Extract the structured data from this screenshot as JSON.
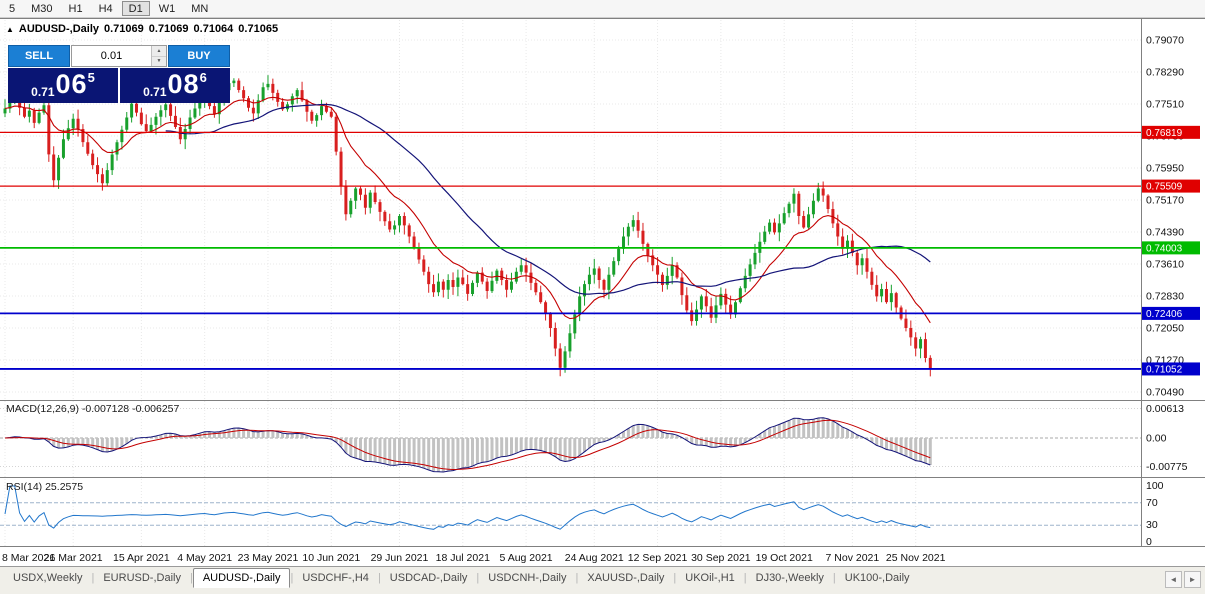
{
  "colors": {
    "up": "#18a02c",
    "down": "#d81f1f",
    "ma_fast": "#c40000",
    "ma_slow": "#141478",
    "macd_hist": "#c2c2c2",
    "macd_line": "#141478",
    "macd_signal": "#c40000",
    "rsi_line": "#2277cc",
    "grid": "#e8e8e8",
    "divider": "#808080",
    "panel_blue": "#0a1574",
    "button_blue": "#1b7fd4"
  },
  "toolbar": {
    "timeframes": [
      {
        "label": "5",
        "active": false
      },
      {
        "label": "M30",
        "active": false
      },
      {
        "label": "H1",
        "active": false
      },
      {
        "label": "H4",
        "active": false
      },
      {
        "label": "D1",
        "active": true
      },
      {
        "label": "W1",
        "active": false
      },
      {
        "label": "MN",
        "active": false
      }
    ]
  },
  "chart_header": {
    "toggle_glyph": "▲",
    "symbol": "AUDUSD-,Daily",
    "open": "0.71069",
    "high": "0.71069",
    "low": "0.71064",
    "close": "0.71065"
  },
  "trade_panel": {
    "sell_label": "SELL",
    "buy_label": "BUY",
    "lot_value": "0.01",
    "spin_up_glyph": "▲",
    "spin_down_glyph": "▼",
    "sell_price": {
      "main": "0.71",
      "big": "06",
      "sup": "5"
    },
    "buy_price": {
      "main": "0.71",
      "big": "08",
      "sup": "6"
    }
  },
  "price_axis": {
    "tags": [
      {
        "text": "0.76819",
        "price": 0.76819,
        "color": "#e00000"
      },
      {
        "text": "0.75509",
        "price": 0.75509,
        "color": "#e00000"
      },
      {
        "text": "0.74003",
        "price": 0.74003,
        "color": "#00bb00"
      },
      {
        "text": "0.72406",
        "price": 0.72406,
        "color": "#0000cc"
      },
      {
        "text": "0.71052",
        "price": 0.71052,
        "color": "#0000cc"
      }
    ]
  },
  "chart_data": [
    {
      "type": "candlestick",
      "title": "AUDUSD-,Daily",
      "ohlc_current": {
        "open": 0.71069,
        "high": 0.71069,
        "low": 0.71064,
        "close": 0.71065
      },
      "ylim": [
        0.7032,
        0.7956
      ],
      "y_ticks": [
        0.7907,
        0.7829,
        0.7751,
        0.7673,
        0.7595,
        0.7517,
        0.7439,
        0.7361,
        0.7283,
        0.7205,
        0.7127,
        0.7049
      ],
      "hlines": [
        {
          "price": 0.76819,
          "color": "#e00000",
          "width": 1.2
        },
        {
          "price": 0.75509,
          "color": "#e00000",
          "width": 1.2
        },
        {
          "price": 0.74003,
          "color": "#00bb00",
          "width": 1.8
        },
        {
          "price": 0.72406,
          "color": "#0000cc",
          "width": 1.8
        },
        {
          "price": 0.71052,
          "color": "#0000cc",
          "width": 1.8
        }
      ],
      "x_tick_labels": [
        "8 Mar 2021",
        "26 Mar 2021",
        "15 Apr 2021",
        "4 May 2021",
        "23 May 2021",
        "10 Jun 2021",
        "29 Jun 2021",
        "18 Jul 2021",
        "5 Aug 2021",
        "24 Aug 2021",
        "12 Sep 2021",
        "30 Sep 2021",
        "19 Oct 2021",
        "7 Nov 2021",
        "25 Nov 2021"
      ],
      "x_tick_indices": [
        0,
        14,
        28,
        41,
        54,
        67,
        81,
        94,
        107,
        121,
        134,
        147,
        160,
        174,
        187
      ],
      "first_open": 0.7728,
      "closes": [
        0.774,
        0.7755,
        0.7768,
        0.7742,
        0.772,
        0.7735,
        0.7705,
        0.773,
        0.7748,
        0.7628,
        0.7565,
        0.762,
        0.7665,
        0.7692,
        0.7715,
        0.769,
        0.7658,
        0.763,
        0.7602,
        0.758,
        0.7558,
        0.759,
        0.7628,
        0.7658,
        0.7688,
        0.7718,
        0.7752,
        0.773,
        0.7702,
        0.7685,
        0.77,
        0.772,
        0.7736,
        0.775,
        0.7722,
        0.7695,
        0.7665,
        0.769,
        0.7718,
        0.774,
        0.776,
        0.7775,
        0.7746,
        0.7726,
        0.7755,
        0.7785,
        0.7802,
        0.7808,
        0.7785,
        0.7765,
        0.7742,
        0.7728,
        0.776,
        0.7792,
        0.78,
        0.7778,
        0.7756,
        0.7738,
        0.775,
        0.777,
        0.7785,
        0.776,
        0.7732,
        0.771,
        0.7724,
        0.7746,
        0.7732,
        0.772,
        0.7635,
        0.7552,
        0.7482,
        0.7515,
        0.7545,
        0.753,
        0.7498,
        0.7535,
        0.7512,
        0.7488,
        0.7465,
        0.7445,
        0.7455,
        0.7478,
        0.7455,
        0.7428,
        0.74,
        0.7372,
        0.7342,
        0.7312,
        0.7292,
        0.7318,
        0.7298,
        0.7322,
        0.7305,
        0.7328,
        0.7312,
        0.7288,
        0.7315,
        0.734,
        0.7318,
        0.7295,
        0.732,
        0.7345,
        0.7322,
        0.7298,
        0.7318,
        0.7342,
        0.7358,
        0.734,
        0.7315,
        0.7292,
        0.7268,
        0.724,
        0.7205,
        0.7155,
        0.7108,
        0.7148,
        0.7192,
        0.7238,
        0.7282,
        0.7312,
        0.7335,
        0.735,
        0.7322,
        0.7298,
        0.7335,
        0.7368,
        0.7398,
        0.7428,
        0.7452,
        0.7468,
        0.7442,
        0.741,
        0.7382,
        0.7358,
        0.7335,
        0.731,
        0.7332,
        0.7358,
        0.7328,
        0.7285,
        0.7248,
        0.7222,
        0.725,
        0.7282,
        0.7258,
        0.723,
        0.726,
        0.7288,
        0.7262,
        0.7238,
        0.7268,
        0.7302,
        0.7332,
        0.736,
        0.7388,
        0.7415,
        0.744,
        0.7462,
        0.7438,
        0.746,
        0.7485,
        0.7508,
        0.7532,
        0.7478,
        0.745,
        0.7482,
        0.7515,
        0.7545,
        0.7528,
        0.7495,
        0.746,
        0.7428,
        0.7398,
        0.7418,
        0.7388,
        0.7358,
        0.7375,
        0.7342,
        0.731,
        0.7282,
        0.73,
        0.7268,
        0.729,
        0.7255,
        0.7228,
        0.7205,
        0.7182,
        0.7155,
        0.7178,
        0.7132,
        0.71065
      ]
    },
    {
      "type": "macd",
      "label": "MACD(12,26,9)",
      "values_text": "-0.007128 -0.006257",
      "params": [
        12,
        26,
        9
      ],
      "current_macd": -0.007128,
      "current_signal": -0.006257,
      "axis_labels": [
        "0.00613",
        "0.00",
        "-0.00775"
      ]
    },
    {
      "type": "rsi",
      "label": "RSI(14)",
      "value_text": "25.2575",
      "period": 14,
      "current": 25.2575,
      "axis_labels": [
        "100",
        "70",
        "30",
        "0"
      ],
      "levels": [
        70,
        30
      ]
    }
  ],
  "tabs": {
    "items": [
      "USDX,Weekly",
      "EURUSD-,Daily",
      "AUDUSD-,Daily",
      "USDCHF-,H4",
      "USDCAD-,Daily",
      "USDCNH-,Daily",
      "XAUUSD-,Daily",
      "UKOil-,H1",
      "DJ30-,Weekly",
      "UK100-,Daily"
    ],
    "active_index": 2,
    "separator": "|",
    "scroll_left_glyph": "◄",
    "scroll_right_glyph": "►"
  }
}
